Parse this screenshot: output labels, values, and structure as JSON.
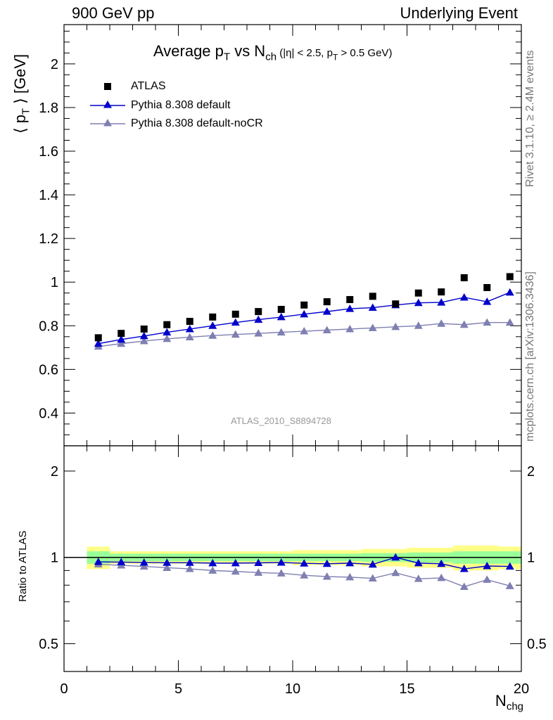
{
  "header": {
    "left": "900 GeV pp",
    "right": "Underlying Event"
  },
  "side_labels": {
    "rivet": "Rivet 3.1.10, ≥ 2.4M events",
    "mcplots": "mcplots.cern.ch [arXiv:1306.3436]"
  },
  "chart_data": {
    "type": "scatter",
    "title_parts": {
      "avg": "Average p",
      "T": "T",
      "vs": " vs N",
      "ch": "ch",
      "cut_a": " (|η| < 2.5, p",
      "cut_T": "T",
      "cut_b": " > 0.5 GeV)"
    },
    "ylabel": "⟨ p_T ⟩ [GeV]",
    "ylabel_parts": {
      "open": "⟨ p",
      "sub": "T",
      "close": " ⟩ [GeV]"
    },
    "xlabel_parts": {
      "main": "N",
      "sub": "chg"
    },
    "ratio_ylabel": "Ratio to ATLAS",
    "reference": "ATLAS_2010_S8894728",
    "xlim": [
      0,
      20
    ],
    "ylim": [
      0.25,
      2.18
    ],
    "ratio_ylim": [
      0.4,
      2.45
    ],
    "xticks": [
      "0",
      "5",
      "10",
      "15",
      "20"
    ],
    "yticks": [
      "0.4",
      "0.6",
      "0.8",
      "1",
      "1.2",
      "1.4",
      "1.6",
      "1.8",
      "2"
    ],
    "ratio_yticks": [
      "0.5",
      "1",
      "2"
    ],
    "x": [
      1.5,
      2.5,
      3.5,
      4.5,
      5.5,
      6.5,
      7.5,
      8.5,
      9.5,
      10.5,
      11.5,
      12.5,
      13.5,
      14.5,
      15.5,
      16.5,
      17.5,
      18.5,
      19.5
    ],
    "x_edges": [
      1,
      2,
      3,
      4,
      5,
      6,
      7,
      8,
      9,
      10,
      11,
      12,
      13,
      14,
      15,
      16,
      17,
      18,
      19,
      20
    ],
    "legend_position": "top-left",
    "series": [
      {
        "name": "ATLAS",
        "color": "#000000",
        "marker": "square",
        "values": [
          0.745,
          0.765,
          0.785,
          0.805,
          0.82,
          0.84,
          0.853,
          0.865,
          0.875,
          0.895,
          0.91,
          0.92,
          0.935,
          0.9,
          0.95,
          0.955,
          1.02,
          0.975,
          1.025
        ]
      },
      {
        "name": "Pythia 8.308 default",
        "color": "#0000cc",
        "marker": "triangle",
        "values": [
          0.718,
          0.737,
          0.753,
          0.77,
          0.785,
          0.8,
          0.815,
          0.828,
          0.84,
          0.853,
          0.865,
          0.878,
          0.883,
          0.895,
          0.905,
          0.907,
          0.93,
          0.91,
          0.953
        ]
      },
      {
        "name": "Pythia 8.308 default-noCR",
        "color": "#7f7fb2",
        "marker": "triangle",
        "values": [
          0.705,
          0.718,
          0.73,
          0.74,
          0.748,
          0.755,
          0.76,
          0.765,
          0.77,
          0.775,
          0.78,
          0.785,
          0.79,
          0.795,
          0.8,
          0.81,
          0.805,
          0.815,
          0.815
        ]
      }
    ],
    "ratio_series": [
      {
        "name": "Pythia 8.308 default",
        "color": "#0000cc",
        "values": [
          0.965,
          0.963,
          0.96,
          0.958,
          0.958,
          0.955,
          0.955,
          0.957,
          0.96,
          0.953,
          0.95,
          0.955,
          0.945,
          1.0,
          0.955,
          0.95,
          0.912,
          0.933,
          0.93
        ]
      },
      {
        "name": "Pythia 8.308 default-noCR",
        "color": "#7f7fb2",
        "values": [
          0.946,
          0.938,
          0.93,
          0.92,
          0.912,
          0.9,
          0.893,
          0.885,
          0.88,
          0.866,
          0.857,
          0.853,
          0.845,
          0.883,
          0.842,
          0.848,
          0.79,
          0.836,
          0.795
        ]
      }
    ],
    "uncertainty_band": {
      "stat_color": "#99ff99",
      "total_color": "#ffff88",
      "stat_halfwidth": [
        0.05,
        0.03,
        0.03,
        0.03,
        0.03,
        0.03,
        0.03,
        0.03,
        0.03,
        0.03,
        0.03,
        0.03,
        0.035,
        0.035,
        0.04,
        0.04,
        0.05,
        0.05,
        0.05
      ],
      "total_halfwidth": [
        0.09,
        0.05,
        0.05,
        0.05,
        0.05,
        0.05,
        0.05,
        0.05,
        0.05,
        0.06,
        0.06,
        0.06,
        0.07,
        0.07,
        0.08,
        0.08,
        0.1,
        0.1,
        0.09
      ]
    }
  }
}
